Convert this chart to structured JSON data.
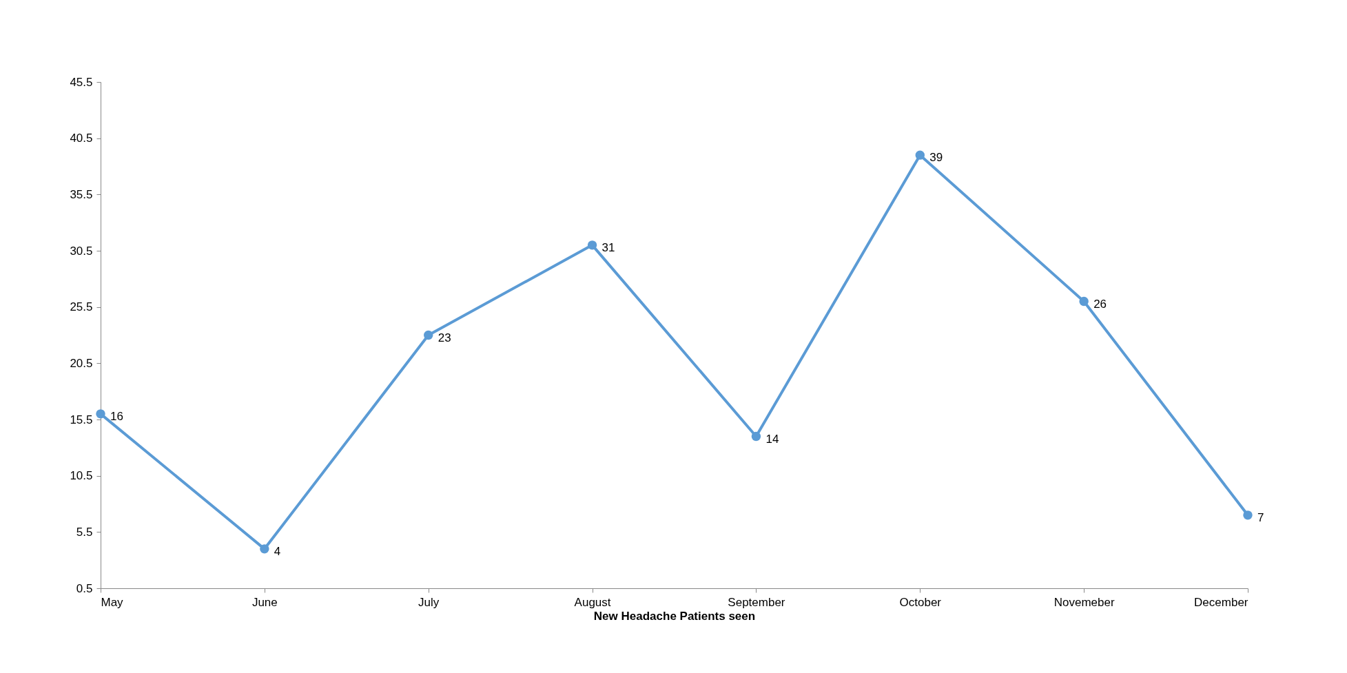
{
  "chart_data": {
    "type": "line",
    "xlabel": "New Headache Patients seen",
    "categories": [
      "May",
      "June",
      "July",
      "August",
      "September",
      "October",
      "Novemeber",
      "December"
    ],
    "series": [
      {
        "color": "#5b9bd5",
        "values": [
          16,
          4,
          23,
          31,
          14,
          39,
          26,
          7
        ]
      }
    ],
    "ylim": [
      0.5,
      45.5
    ],
    "yticks": [
      0.5,
      5.5,
      10.5,
      15.5,
      20.5,
      25.5,
      30.5,
      35.5,
      40.5,
      45.5
    ],
    "grid": false,
    "marker": "circle",
    "line_style": "solid",
    "data_labels": true
  }
}
